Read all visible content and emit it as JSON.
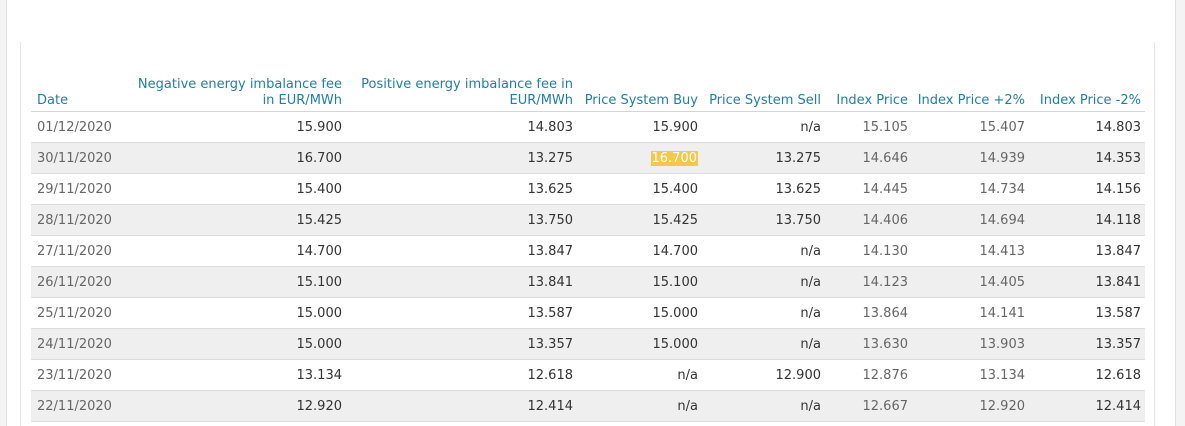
{
  "table": {
    "headers": [
      "Date",
      "Negative energy imbalance fee in EUR/MWh",
      "Positive energy imbalance fee in EUR/MWh",
      "Price System Buy",
      "Price System Sell",
      "Index Price",
      "Index Price +2%",
      "Index Price -2%"
    ],
    "rows": [
      [
        "01/12/2020",
        "15.900",
        "14.803",
        "15.900",
        "n/a",
        "15.105",
        "15.407",
        "14.803"
      ],
      [
        "30/11/2020",
        "16.700",
        "13.275",
        "16.700",
        "13.275",
        "14.646",
        "14.939",
        "14.353"
      ],
      [
        "29/11/2020",
        "15.400",
        "13.625",
        "15.400",
        "13.625",
        "14.445",
        "14.734",
        "14.156"
      ],
      [
        "28/11/2020",
        "15.425",
        "13.750",
        "15.425",
        "13.750",
        "14.406",
        "14.694",
        "14.118"
      ],
      [
        "27/11/2020",
        "14.700",
        "13.847",
        "14.700",
        "n/a",
        "14.130",
        "14.413",
        "13.847"
      ],
      [
        "26/11/2020",
        "15.100",
        "13.841",
        "15.100",
        "n/a",
        "14.123",
        "14.405",
        "13.841"
      ],
      [
        "25/11/2020",
        "15.000",
        "13.587",
        "15.000",
        "n/a",
        "13.864",
        "14.141",
        "13.587"
      ],
      [
        "24/11/2020",
        "15.000",
        "13.357",
        "15.000",
        "n/a",
        "13.630",
        "13.903",
        "13.357"
      ],
      [
        "23/11/2020",
        "13.134",
        "12.618",
        "n/a",
        "12.900",
        "12.876",
        "13.134",
        "12.618"
      ],
      [
        "22/11/2020",
        "12.920",
        "12.414",
        "n/a",
        "n/a",
        "12.667",
        "12.920",
        "12.414"
      ]
    ],
    "highlight": {
      "row": 1,
      "col": 3,
      "color": "#f3c84b"
    }
  },
  "colors": {
    "header_text": "#1f7fa3",
    "row_stripe": "#efefef",
    "highlight": "#f3c84b"
  }
}
